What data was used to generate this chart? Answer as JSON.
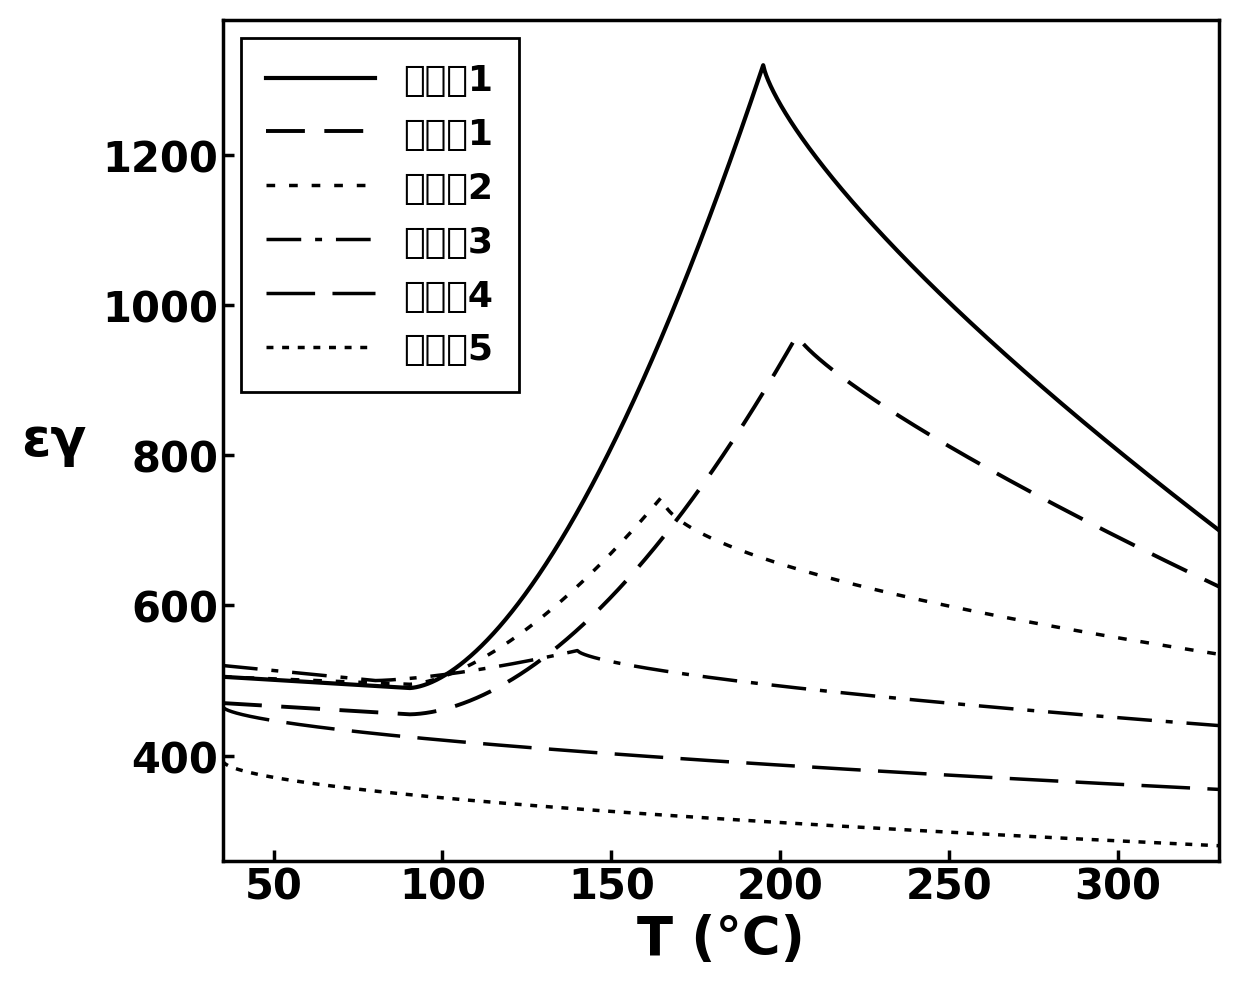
{
  "title": "",
  "xlabel": "T (°C)",
  "ylabel": "εγ",
  "xlim": [
    35,
    330
  ],
  "ylim": [
    260,
    1380
  ],
  "xticks": [
    50,
    100,
    150,
    200,
    250,
    300
  ],
  "yticks": [
    400,
    600,
    800,
    1000,
    1200
  ],
  "figsize": [
    12.4,
    9.87
  ],
  "dpi": 100,
  "legend_labels": [
    "对比套1",
    "实施套1",
    "实施套2",
    "实施套3",
    "实施套4",
    "实施套5"
  ],
  "background_color": "white",
  "line_color": "black",
  "line_widths": [
    3.0,
    2.8,
    2.5,
    2.5,
    2.5,
    2.5
  ]
}
